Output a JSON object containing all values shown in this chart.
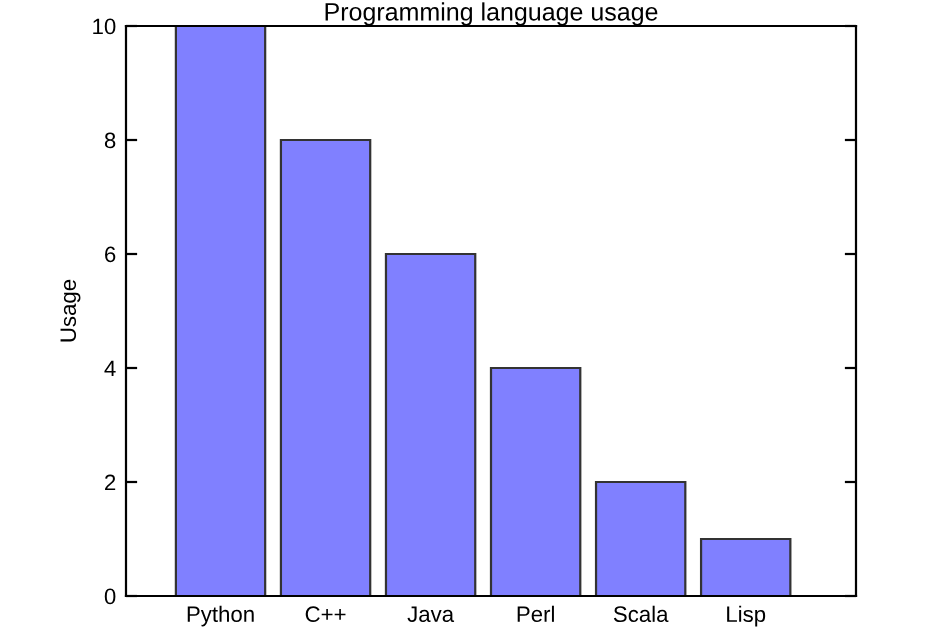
{
  "chart_data": {
    "type": "bar",
    "title": "Programming language usage",
    "ylabel": "Usage",
    "categories": [
      "Python",
      "C++",
      "Java",
      "Perl",
      "Scala",
      "Lisp"
    ],
    "values": [
      10,
      8,
      6,
      4,
      2,
      1
    ],
    "color": "#8080ff",
    "ylim": [
      0,
      10
    ],
    "yticks": [
      0,
      2,
      4,
      6,
      8,
      10
    ],
    "grid": false,
    "legend": false
  }
}
